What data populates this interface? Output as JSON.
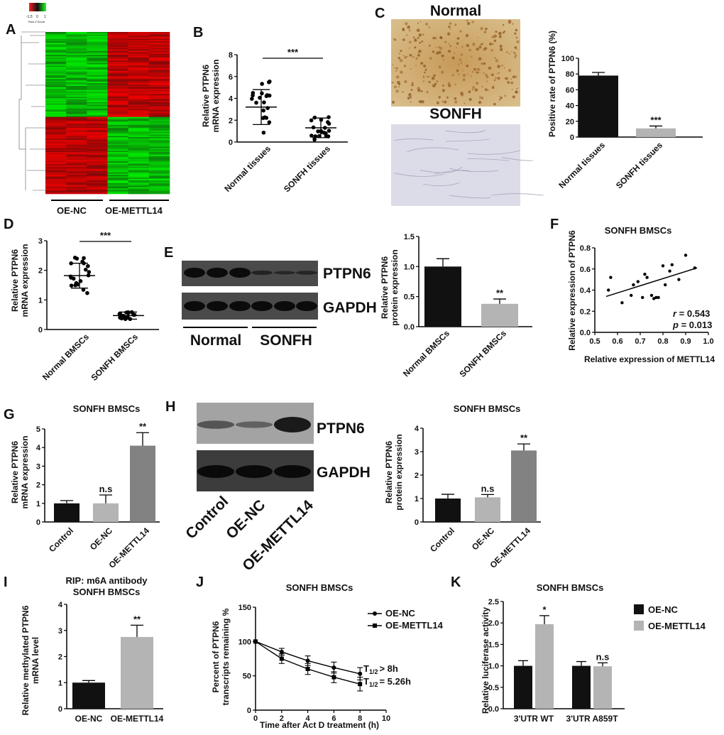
{
  "panels": {
    "A": {
      "label": "A",
      "colorkey": {
        "ticks": [
          "-1.5",
          "0",
          "1"
        ],
        "title": "Row Z-Score"
      },
      "groups": [
        "OE-NC",
        "OE-METTL14"
      ]
    },
    "B": {
      "label": "B",
      "ylabel": [
        "Relative PTPN6",
        "mRNA expression"
      ],
      "yticks": [
        "0",
        "2",
        "4",
        "6",
        "8"
      ],
      "categories": [
        "Normal tissues",
        "SONFH tissues"
      ],
      "sig": "***"
    },
    "C": {
      "label": "C",
      "img_titles": [
        "Normal",
        "SONFH"
      ],
      "ylabel": "Positive rate of PTPN6 (%)",
      "yticks": [
        "0",
        "20",
        "40",
        "60",
        "80",
        "100"
      ],
      "categories": [
        "Normal tissues",
        "SONFH tissues"
      ],
      "sig": "***"
    },
    "D": {
      "label": "D",
      "ylabel": [
        "Relative PTPN6",
        "mRNA expression"
      ],
      "yticks": [
        "0",
        "1",
        "2",
        "3"
      ],
      "categories": [
        "Normal BMSCs",
        "SONFH BMSCs"
      ],
      "sig": "***"
    },
    "E": {
      "label": "E",
      "bands": [
        "PTPN6",
        "GAPDH"
      ],
      "groups": [
        "Normal",
        "SONFH"
      ],
      "ylabel": [
        "Relative PTPN6",
        "protein expression"
      ],
      "yticks": [
        "0.0",
        "0.5",
        "1.0",
        "1.5"
      ],
      "categories": [
        "Normal BMSCs",
        "SONFH BMSCs"
      ],
      "sig": "**"
    },
    "F": {
      "label": "F",
      "title": "SONFH BMSCs",
      "ylabel": "Relative expression of PTPN6",
      "xlabel": "Relative expression of METTL14",
      "xticks": [
        "0.5",
        "0.6",
        "0.7",
        "0.8",
        "0.9",
        "1.0"
      ],
      "yticks": [
        "0.0",
        "0.2",
        "0.4",
        "0.6",
        "0.8"
      ],
      "r_label": "r",
      "r_value": " = 0.543",
      "p_label": "p",
      "p_value": " = 0.013"
    },
    "G": {
      "label": "G",
      "title": "SONFH BMSCs",
      "ylabel": [
        "Relative PTPN6",
        "mRNA expression"
      ],
      "yticks": [
        "0",
        "1",
        "2",
        "3",
        "4",
        "5"
      ],
      "categories": [
        "Control",
        "OE-NC",
        "OE-METTL14"
      ],
      "sigs": [
        "",
        "n.s",
        "**"
      ]
    },
    "H": {
      "label": "H",
      "bands": [
        "PTPN6",
        "GAPDH"
      ],
      "lanes": [
        "Control",
        "OE-NC",
        "OE-METTL14"
      ],
      "title": "SONFH BMSCs",
      "ylabel": [
        "Relative PTPN6",
        "protein expression"
      ],
      "yticks": [
        "0",
        "1",
        "2",
        "3",
        "4"
      ],
      "categories": [
        "Control",
        "OE-NC",
        "OE-METTL14"
      ],
      "sigs": [
        "",
        "n.s",
        "**"
      ]
    },
    "I": {
      "label": "I",
      "title": [
        "RIP: m6A antibody",
        "SONFH BMSCs"
      ],
      "ylabel": [
        "Relative methylated PTPN6",
        "mRNA level"
      ],
      "yticks": [
        "0",
        "1",
        "2",
        "3",
        "4"
      ],
      "categories": [
        "OE-NC",
        "OE-METTL14"
      ],
      "sigs": [
        "",
        "**"
      ]
    },
    "J": {
      "label": "J",
      "title": "SONFH BMSCs",
      "ylabel": [
        "Percent of PTPN6",
        "transcripts remaining %"
      ],
      "xlabel": "Time after Act D treatment (h)",
      "xticks": [
        "0",
        "2",
        "4",
        "6",
        "8",
        "10"
      ],
      "yticks": [
        "0",
        "50",
        "100",
        "150"
      ],
      "legend": [
        "OE-NC",
        "OE-METTL14"
      ],
      "t_half_1": "> 8h",
      "t_half_2": "= 5.26h",
      "t_sym": "T",
      "t_sub": "1/2"
    },
    "K": {
      "label": "K",
      "title": "SONFH BMSCs",
      "ylabel": "Relative luciferase activity",
      "yticks": [
        "0.0",
        "0.5",
        "1.0",
        "1.5",
        "2.0",
        "2.5"
      ],
      "categories": [
        "3'UTR WT",
        "3'UTR A859T"
      ],
      "legend": [
        "OE-NC",
        "OE-METTL14"
      ],
      "sigs": [
        "*",
        "n.s"
      ]
    }
  },
  "chart_data": [
    {
      "panel": "B",
      "type": "scatter",
      "categories": [
        "Normal tissues",
        "SONFH tissues"
      ],
      "series": [
        {
          "values": [
            3.2,
            1.3
          ]
        }
      ],
      "error": [
        1.6,
        0.9
      ],
      "ylim": [
        0,
        8
      ]
    },
    {
      "panel": "C",
      "type": "bar",
      "categories": [
        "Normal tissues",
        "SONFH tissues"
      ],
      "values": [
        78,
        11
      ],
      "error": [
        4,
        3
      ],
      "ylim": [
        0,
        100
      ]
    },
    {
      "panel": "D",
      "type": "scatter",
      "categories": [
        "Normal BMSCs",
        "SONFH BMSCs"
      ],
      "series": [
        {
          "values": [
            1.82,
            0.47
          ]
        }
      ],
      "error": [
        0.42,
        0.12
      ],
      "ylim": [
        0,
        3
      ]
    },
    {
      "panel": "E",
      "type": "bar",
      "categories": [
        "Normal BMSCs",
        "SONFH BMSCs"
      ],
      "values": [
        1.0,
        0.38
      ],
      "error": [
        0.13,
        0.08
      ],
      "ylim": [
        0,
        1.5
      ]
    },
    {
      "panel": "F",
      "type": "scatter",
      "x": [
        0.56,
        0.57,
        0.62,
        0.66,
        0.67,
        0.69,
        0.71,
        0.72,
        0.73,
        0.75,
        0.76,
        0.77,
        0.78,
        0.8,
        0.81,
        0.83,
        0.84,
        0.87,
        0.9,
        0.94
      ],
      "y": [
        0.4,
        0.52,
        0.28,
        0.35,
        0.45,
        0.48,
        0.33,
        0.55,
        0.52,
        0.35,
        0.32,
        0.33,
        0.33,
        0.63,
        0.45,
        0.58,
        0.64,
        0.5,
        0.73,
        0.61
      ],
      "fit": [
        [
          0.55,
          0.34
        ],
        [
          0.95,
          0.61
        ]
      ],
      "xlim": [
        0.5,
        1.0
      ],
      "ylim": [
        0.0,
        0.8
      ]
    },
    {
      "panel": "G",
      "type": "bar",
      "categories": [
        "Control",
        "OE-NC",
        "OE-METTL14"
      ],
      "values": [
        1.0,
        1.0,
        4.1
      ],
      "error": [
        0.15,
        0.45,
        0.7
      ],
      "ylim": [
        0,
        5
      ]
    },
    {
      "panel": "H",
      "type": "bar",
      "categories": [
        "Control",
        "OE-NC",
        "OE-METTL14"
      ],
      "values": [
        1.0,
        1.05,
        3.05
      ],
      "error": [
        0.18,
        0.12,
        0.28
      ],
      "ylim": [
        0,
        4
      ]
    },
    {
      "panel": "I",
      "type": "bar",
      "categories": [
        "OE-NC",
        "OE-METTL14"
      ],
      "values": [
        1.0,
        2.75
      ],
      "error": [
        0.08,
        0.45
      ],
      "ylim": [
        0,
        4
      ]
    },
    {
      "panel": "J",
      "type": "line",
      "x": [
        0,
        2,
        4,
        6,
        8
      ],
      "series": [
        {
          "name": "OE-NC",
          "values": [
            100,
            85,
            72,
            62,
            53
          ],
          "error": [
            0,
            5,
            7,
            8,
            9
          ]
        },
        {
          "name": "OE-METTL14",
          "values": [
            100,
            75,
            60,
            48,
            38
          ],
          "error": [
            0,
            7,
            8,
            8,
            10
          ]
        }
      ],
      "xlim": [
        0,
        10
      ],
      "ylim": [
        0,
        150
      ]
    },
    {
      "panel": "K",
      "type": "bar",
      "categories": [
        "3'UTR WT",
        "3'UTR A859T"
      ],
      "series": [
        {
          "name": "OE-NC",
          "values": [
            1.0,
            1.0
          ],
          "error": [
            0.12,
            0.1
          ]
        },
        {
          "name": "OE-METTL14",
          "values": [
            1.97,
            0.99
          ],
          "error": [
            0.2,
            0.08
          ]
        }
      ],
      "ylim": [
        0,
        2.5
      ]
    }
  ],
  "colors": {
    "black": "#111111",
    "light_grey": "#b4b4b4",
    "mid_grey": "#828282",
    "heat_red": "#d01010",
    "heat_green": "#10c010",
    "ihc_brown": "#c8a060",
    "ihc_blue": "#d8d6e6"
  }
}
